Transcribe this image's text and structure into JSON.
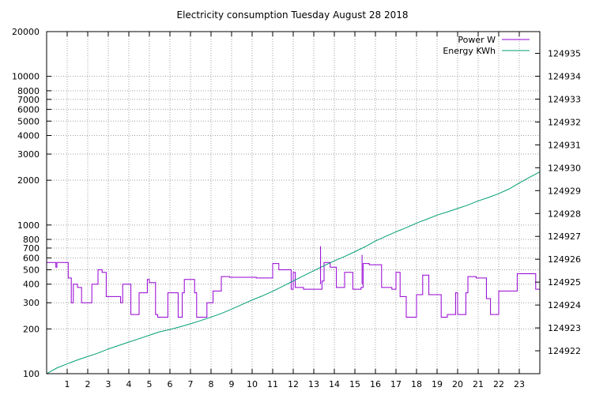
{
  "chart_data": {
    "type": "line",
    "title": "Electricity consumption Tuesday August 28 2018",
    "x_ticks": [
      1,
      2,
      3,
      4,
      5,
      6,
      7,
      8,
      9,
      10,
      11,
      12,
      13,
      14,
      15,
      16,
      17,
      18,
      19,
      20,
      21,
      22,
      23
    ],
    "xlim": [
      0,
      24
    ],
    "y_left": {
      "scale": "log",
      "ylim": [
        100,
        20000
      ],
      "ticks": [
        100,
        200,
        300,
        400,
        500,
        600,
        700,
        800,
        1000,
        2000,
        3000,
        4000,
        5000,
        6000,
        7000,
        8000,
        10000,
        20000
      ]
    },
    "y_right": {
      "ylim": [
        124921.0,
        124935.95
      ],
      "ticks": [
        124922,
        124923,
        124924,
        124925,
        124926,
        124927,
        124928,
        124929,
        124930,
        124931,
        124932,
        124933,
        124934,
        124935
      ]
    },
    "grid": true,
    "legend_position": "top-right",
    "series": [
      {
        "name": "Power W",
        "axis": "left",
        "color": "#9400d3",
        "style": "step",
        "x": [
          0,
          0.45,
          0.5,
          1.05,
          1.2,
          1.3,
          1.5,
          1.7,
          2.2,
          2.5,
          2.7,
          2.9,
          3.0,
          3.6,
          3.7,
          4.1,
          4.5,
          4.9,
          5.0,
          5.3,
          5.4,
          5.8,
          5.9,
          6.4,
          6.6,
          6.7,
          7.2,
          7.3,
          7.7,
          7.8,
          8.1,
          8.5,
          8.8,
          8.9,
          9.0,
          9.3,
          10.2,
          11.0,
          11.3,
          11.4,
          11.9,
          12.0,
          12.1,
          12.5,
          13.3,
          13.4,
          13.5,
          13.8,
          14.1,
          14.5,
          14.9,
          15.3,
          15.4,
          15.7,
          16.3,
          16.8,
          17.0,
          17.2,
          17.5,
          18.0,
          18.3,
          18.6,
          19.2,
          19.5,
          19.9,
          20.0,
          20.4,
          20.5,
          20.9,
          21.4,
          21.6,
          21.7,
          22.0,
          22.9,
          23.2,
          23.8,
          24.0
        ],
        "y": [
          560,
          520,
          560,
          440,
          300,
          400,
          380,
          300,
          400,
          500,
          480,
          330,
          330,
          300,
          400,
          250,
          350,
          430,
          410,
          250,
          240,
          240,
          350,
          240,
          350,
          430,
          350,
          240,
          240,
          300,
          360,
          450,
          450,
          445,
          445,
          445,
          440,
          550,
          500,
          500,
          370,
          480,
          380,
          370,
          370,
          420,
          560,
          520,
          380,
          480,
          370,
          380,
          550,
          540,
          380,
          370,
          480,
          330,
          240,
          340,
          460,
          340,
          240,
          250,
          350,
          250,
          350,
          450,
          440,
          320,
          250,
          250,
          360,
          470,
          470,
          370,
          500
        ]
      },
      {
        "name": "Energy KWh",
        "axis": "right",
        "color": "#009e73",
        "style": "line",
        "x": [
          0,
          0.5,
          1,
          1.5,
          2,
          2.5,
          3,
          3.5,
          4,
          4.5,
          5,
          5.5,
          6,
          6.5,
          7,
          7.5,
          8,
          8.5,
          9,
          9.5,
          10,
          10.5,
          11,
          11.5,
          12,
          12.5,
          13,
          13.5,
          14,
          14.5,
          15,
          15.5,
          16,
          16.5,
          17,
          17.5,
          18,
          18.5,
          19,
          19.5,
          20,
          20.5,
          21,
          21.5,
          22,
          22.5,
          23,
          23.5,
          24
        ],
        "y": [
          124921.0,
          124921.25,
          124921.43,
          124921.6,
          124921.75,
          124921.9,
          124922.08,
          124922.23,
          124922.38,
          124922.53,
          124922.68,
          124922.83,
          124922.93,
          124923.05,
          124923.18,
          124923.32,
          124923.47,
          124923.63,
          124923.82,
          124924.02,
          124924.22,
          124924.4,
          124924.6,
          124924.82,
          124925.05,
          124925.28,
          124925.5,
          124925.72,
          124925.93,
          124926.12,
          124926.33,
          124926.55,
          124926.8,
          124927.0,
          124927.2,
          124927.38,
          124927.58,
          124927.75,
          124927.93,
          124928.07,
          124928.22,
          124928.37,
          124928.55,
          124928.7,
          124928.87,
          124929.07,
          124929.33,
          124929.58,
          124929.82
        ]
      }
    ]
  }
}
